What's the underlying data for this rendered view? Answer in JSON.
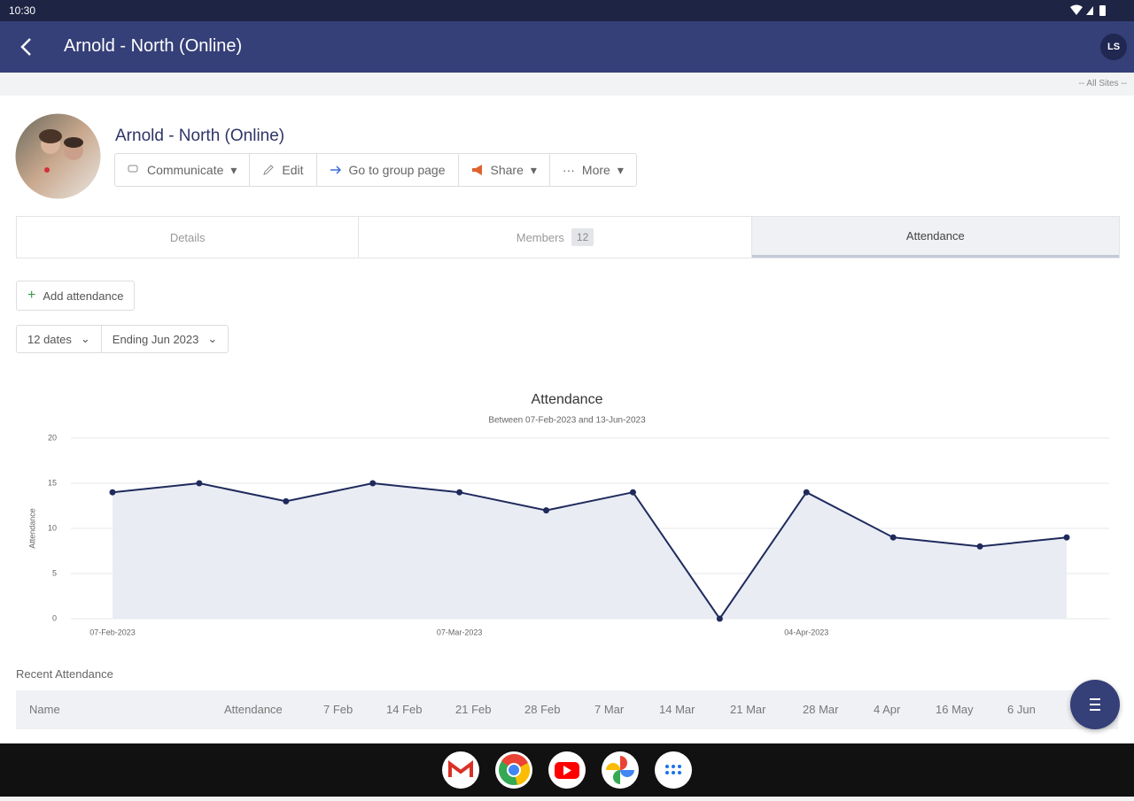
{
  "status_bar": {
    "time": "10:30"
  },
  "app_bar": {
    "title": "Arnold - North (Online)",
    "avatar": "LS"
  },
  "site_selector": "-- All Sites --",
  "group": {
    "name": "Arnold - North (Online)",
    "buttons": [
      "Communicate",
      "Edit",
      "Go to group page",
      "Share",
      "More"
    ]
  },
  "tabs": [
    {
      "label": "Details"
    },
    {
      "label": "Members",
      "count": "12"
    },
    {
      "label": "Attendance"
    }
  ],
  "actions": {
    "add": "Add attendance"
  },
  "filters": [
    "12 dates",
    "Ending Jun 2023"
  ],
  "chart_data": {
    "type": "line",
    "title": "Attendance",
    "subtitle": "Between 07-Feb-2023 and 13-Jun-2023",
    "y_label": "Attendance",
    "categories": [
      "07-Feb-2023",
      null,
      null,
      null,
      "07-Mar-2023",
      null,
      null,
      null,
      "04-Apr-2023",
      null,
      null,
      null
    ],
    "series": [
      {
        "name": "Attendance",
        "color": "#1f2a5c",
        "area_color": "#e9ecf3",
        "values": [
          14,
          15,
          13,
          15,
          14,
          12,
          14,
          0,
          14,
          9,
          8,
          9
        ]
      }
    ],
    "ylim": [
      0,
      20
    ],
    "yticks": [
      0,
      5,
      10,
      15,
      20
    ],
    "grid": true
  },
  "recent": {
    "title": "Recent Attendance"
  },
  "table": {
    "headers": [
      "Name",
      "Attendance",
      "7 Feb",
      "14 Feb",
      "21 Feb",
      "28 Feb",
      "7 Mar",
      "14 Mar",
      "21 Mar",
      "28 Mar",
      "4 Apr",
      "16 May",
      "6 Jun"
    ]
  }
}
